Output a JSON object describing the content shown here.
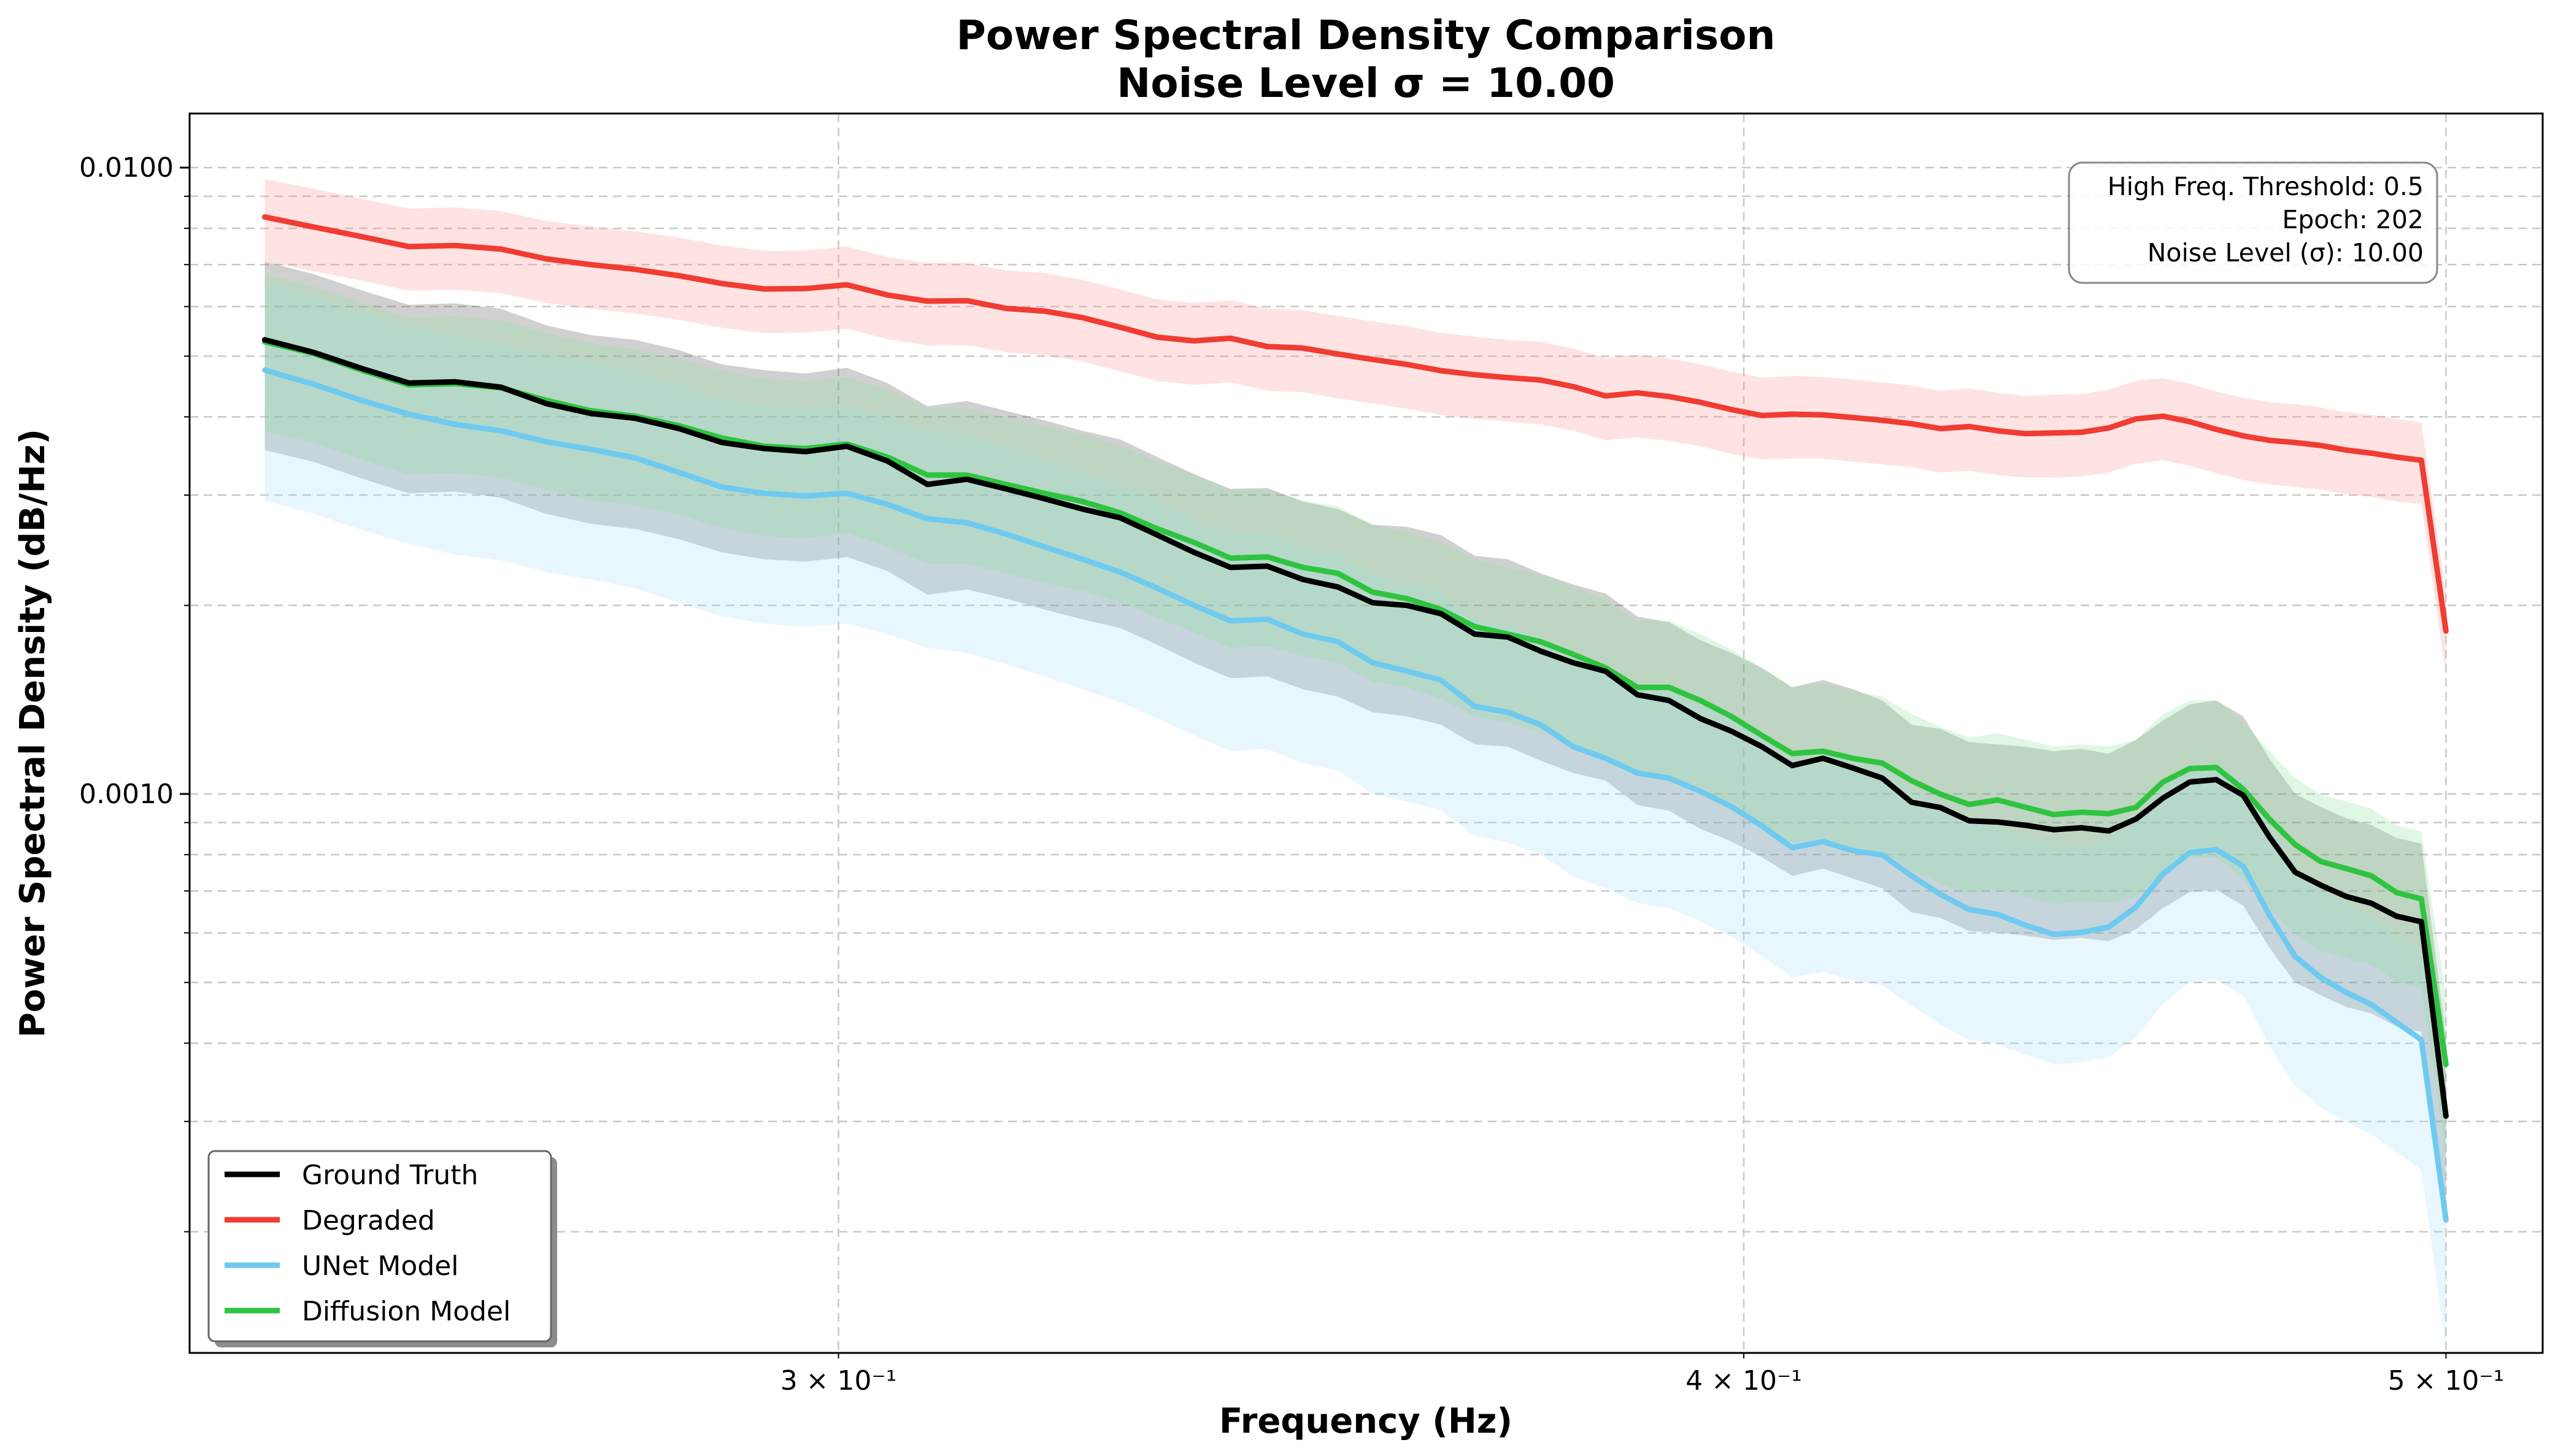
{
  "chart_data": {
    "type": "line",
    "title": "Power Spectral Density Comparison",
    "subtitle": "Noise Level σ = 10.00",
    "xlabel": "Frequency (Hz)",
    "ylabel": "Power Spectral Density (dB/Hz)",
    "x_scale": "log",
    "y_scale": "log",
    "xlim": [
      0.2441,
      0.5156
    ],
    "ylim": [
      0.0001281,
      0.0122
    ],
    "x_ticks": [
      {
        "value": 0.3,
        "label": "3 × 10⁻¹"
      },
      {
        "value": 0.4,
        "label": "4 × 10⁻¹"
      },
      {
        "value": 0.5,
        "label": "5 × 10⁻¹"
      }
    ],
    "y_ticks": [
      {
        "value": 0.001,
        "label": "0.0010"
      },
      {
        "value": 0.01,
        "label": "0.0100"
      }
    ],
    "grid": true,
    "legend_position": "lower-left",
    "annotation": [
      "High Freq. Threshold: 0.5",
      "Epoch: 202",
      "Noise Level (σ): 10.00"
    ],
    "annotation_position": "top-right",
    "x": [
      0.25,
      0.2539,
      0.2578,
      0.2617,
      0.2656,
      0.2695,
      0.2734,
      0.2773,
      0.2812,
      0.2852,
      0.2891,
      0.293,
      0.2969,
      0.3008,
      0.3047,
      0.3086,
      0.3125,
      0.3164,
      0.3203,
      0.3242,
      0.3281,
      0.332,
      0.3359,
      0.3398,
      0.3438,
      0.3477,
      0.3516,
      0.3555,
      0.3594,
      0.3633,
      0.3672,
      0.3711,
      0.375,
      0.3789,
      0.3828,
      0.3867,
      0.3906,
      0.3945,
      0.3984,
      0.4023,
      0.4062,
      0.4102,
      0.4141,
      0.418,
      0.4219,
      0.4258,
      0.4297,
      0.4336,
      0.4375,
      0.4414,
      0.4453,
      0.4492,
      0.4531,
      0.457,
      0.4609,
      0.4648,
      0.4688,
      0.4727,
      0.4766,
      0.4805,
      0.4844,
      0.4883,
      0.4922,
      0.4961,
      0.5
    ],
    "series": [
      {
        "name": "Ground Truth",
        "color": "#000000",
        "band_color": "#555555",
        "values": [
          0.00531,
          0.00507,
          0.00478,
          0.00453,
          0.00455,
          0.00446,
          0.0042,
          0.00405,
          0.00398,
          0.00383,
          0.00364,
          0.00356,
          0.00352,
          0.00359,
          0.0034,
          0.00312,
          0.00318,
          0.00307,
          0.00296,
          0.00285,
          0.00276,
          0.00259,
          0.00243,
          0.0023,
          0.00231,
          0.0022,
          0.00214,
          0.00202,
          0.002,
          0.00194,
          0.0018,
          0.00178,
          0.00169,
          0.00162,
          0.00157,
          0.00144,
          0.00141,
          0.00132,
          0.00126,
          0.00119,
          0.00111,
          0.00114,
          0.0011,
          0.00106,
          0.00097,
          0.000951,
          0.000906,
          0.000902,
          0.000891,
          0.000877,
          0.000883,
          0.000873,
          0.000912,
          0.000985,
          0.001045,
          0.001054,
          0.000995,
          0.000854,
          0.00075,
          0.000715,
          0.000686,
          0.000669,
          0.000638,
          0.000625,
          0.000306
        ],
        "lower": [
          0.00354,
          0.00339,
          0.00319,
          0.00302,
          0.00304,
          0.00297,
          0.0028,
          0.0027,
          0.00265,
          0.00255,
          0.00243,
          0.00237,
          0.00235,
          0.00239,
          0.00227,
          0.00208,
          0.00212,
          0.00205,
          0.00197,
          0.0019,
          0.00184,
          0.00173,
          0.00162,
          0.00153,
          0.00154,
          0.00147,
          0.00143,
          0.00135,
          0.00133,
          0.00129,
          0.0012,
          0.00119,
          0.00113,
          0.00108,
          0.00105,
          0.00096,
          0.00094,
          0.00088,
          0.00084,
          0.000793,
          0.00074,
          0.00076,
          0.000733,
          0.000707,
          0.000647,
          0.000634,
          0.000604,
          0.000601,
          0.000594,
          0.000585,
          0.000589,
          0.000582,
          0.000608,
          0.000657,
          0.000697,
          0.000703,
          0.000663,
          0.000569,
          0.0005,
          0.000477,
          0.000457,
          0.000446,
          0.000425,
          0.000417,
          0.000204
        ],
        "upper": [
          0.00708,
          0.00676,
          0.00637,
          0.00604,
          0.00607,
          0.00595,
          0.0056,
          0.0054,
          0.00531,
          0.00511,
          0.00485,
          0.00475,
          0.00469,
          0.00479,
          0.00453,
          0.00416,
          0.00424,
          0.00409,
          0.00395,
          0.0038,
          0.00368,
          0.00345,
          0.00324,
          0.00307,
          0.00308,
          0.00293,
          0.00285,
          0.00269,
          0.00267,
          0.00259,
          0.0024,
          0.00237,
          0.00225,
          0.00216,
          0.00209,
          0.00192,
          0.00188,
          0.00176,
          0.00168,
          0.00159,
          0.00148,
          0.00152,
          0.00147,
          0.00141,
          0.00129,
          0.00127,
          0.00121,
          0.0012,
          0.00119,
          0.00117,
          0.00118,
          0.00116,
          0.00122,
          0.00131,
          0.00139,
          0.00141,
          0.00133,
          0.00114,
          0.001,
          0.000953,
          0.000915,
          0.000892,
          0.000851,
          0.000833,
          0.000408
        ]
      },
      {
        "name": "Degraded",
        "color": "#f03c32",
        "band_color": "#ff9a9a",
        "values": [
          0.00834,
          0.00804,
          0.00776,
          0.00748,
          0.00751,
          0.00741,
          0.00715,
          0.007,
          0.00688,
          0.00672,
          0.00653,
          0.0064,
          0.00641,
          0.0065,
          0.00626,
          0.00612,
          0.00613,
          0.00596,
          0.0059,
          0.00576,
          0.00556,
          0.00536,
          0.00529,
          0.00534,
          0.00518,
          0.00515,
          0.00504,
          0.00494,
          0.00485,
          0.00474,
          0.00467,
          0.00462,
          0.00458,
          0.00447,
          0.00432,
          0.00437,
          0.00431,
          0.00422,
          0.00411,
          0.00402,
          0.00404,
          0.00403,
          0.00399,
          0.00395,
          0.0039,
          0.00383,
          0.00386,
          0.0038,
          0.00376,
          0.00377,
          0.00378,
          0.00384,
          0.00397,
          0.00401,
          0.00393,
          0.00382,
          0.00373,
          0.00367,
          0.00364,
          0.0036,
          0.00354,
          0.0035,
          0.00345,
          0.00341,
          0.00182
        ],
        "lower": [
          0.00708,
          0.00683,
          0.0066,
          0.00636,
          0.00638,
          0.0063,
          0.00608,
          0.00595,
          0.00585,
          0.00571,
          0.00555,
          0.00544,
          0.00545,
          0.00553,
          0.00532,
          0.0052,
          0.00521,
          0.00507,
          0.00502,
          0.0049,
          0.00473,
          0.00456,
          0.0045,
          0.00454,
          0.0044,
          0.00438,
          0.00428,
          0.0042,
          0.00412,
          0.00403,
          0.00397,
          0.00393,
          0.00389,
          0.0038,
          0.00367,
          0.00371,
          0.00366,
          0.00359,
          0.00349,
          0.00342,
          0.00343,
          0.00343,
          0.00339,
          0.00336,
          0.00332,
          0.00326,
          0.00328,
          0.00323,
          0.0032,
          0.0032,
          0.00321,
          0.00326,
          0.00337,
          0.00341,
          0.00334,
          0.00325,
          0.00317,
          0.00312,
          0.00309,
          0.00306,
          0.00301,
          0.00298,
          0.00293,
          0.0029,
          0.00155
        ],
        "upper": [
          0.0096,
          0.00925,
          0.00892,
          0.0086,
          0.00864,
          0.00852,
          0.00822,
          0.00805,
          0.00791,
          0.00773,
          0.00751,
          0.00736,
          0.00737,
          0.00748,
          0.0072,
          0.00704,
          0.00705,
          0.00685,
          0.00679,
          0.00662,
          0.00639,
          0.00616,
          0.00608,
          0.00614,
          0.00596,
          0.00592,
          0.0058,
          0.00568,
          0.00558,
          0.00545,
          0.00537,
          0.00531,
          0.00527,
          0.00514,
          0.00497,
          0.00503,
          0.00496,
          0.00485,
          0.00473,
          0.00462,
          0.00465,
          0.00463,
          0.00459,
          0.00454,
          0.00449,
          0.0044,
          0.00444,
          0.00437,
          0.00432,
          0.00434,
          0.00435,
          0.00442,
          0.00457,
          0.00461,
          0.00452,
          0.00439,
          0.00429,
          0.00422,
          0.00419,
          0.00414,
          0.00407,
          0.00403,
          0.00397,
          0.00392,
          0.00209
        ]
      },
      {
        "name": "UNet Model",
        "color": "#6fcaf0",
        "band_color": "#a8e2f8",
        "values": [
          0.00475,
          0.00451,
          0.00425,
          0.00404,
          0.00389,
          0.0038,
          0.00365,
          0.00355,
          0.00344,
          0.00326,
          0.00309,
          0.00302,
          0.00299,
          0.00302,
          0.0029,
          0.00275,
          0.00271,
          0.0026,
          0.00248,
          0.00237,
          0.00226,
          0.00213,
          0.002,
          0.00189,
          0.0019,
          0.0018,
          0.00175,
          0.00162,
          0.00157,
          0.00152,
          0.00138,
          0.00135,
          0.00129,
          0.00119,
          0.00114,
          0.00108,
          0.00106,
          0.00101,
          0.000955,
          0.000889,
          0.000821,
          0.000839,
          0.000812,
          0.000799,
          0.00074,
          0.000691,
          0.000654,
          0.000642,
          0.000617,
          0.000597,
          0.000601,
          0.000613,
          0.00066,
          0.000745,
          0.000806,
          0.000815,
          0.000767,
          0.000641,
          0.00055,
          0.000509,
          0.000482,
          0.000461,
          0.000432,
          0.000405,
          0.000209
        ],
        "lower": [
          0.00294,
          0.0028,
          0.00264,
          0.00251,
          0.00241,
          0.00236,
          0.00226,
          0.0022,
          0.00213,
          0.00202,
          0.00192,
          0.00187,
          0.00185,
          0.00187,
          0.0018,
          0.00171,
          0.00168,
          0.00161,
          0.00154,
          0.00147,
          0.0014,
          0.00132,
          0.00124,
          0.00117,
          0.00118,
          0.00112,
          0.00109,
          0.001,
          0.000973,
          0.000942,
          0.000856,
          0.000837,
          0.0008,
          0.000738,
          0.000707,
          0.00067,
          0.000657,
          0.000626,
          0.000592,
          0.000551,
          0.000509,
          0.00052,
          0.000503,
          0.000495,
          0.000459,
          0.000428,
          0.000405,
          0.000398,
          0.000383,
          0.00037,
          0.000373,
          0.00038,
          0.000409,
          0.000462,
          0.0005,
          0.000505,
          0.000476,
          0.000397,
          0.000341,
          0.000316,
          0.000299,
          0.000286,
          0.000268,
          0.000251,
          0.00013
        ],
        "upper": [
          0.00656,
          0.00622,
          0.00587,
          0.00558,
          0.00537,
          0.00524,
          0.00504,
          0.0049,
          0.00475,
          0.0045,
          0.00426,
          0.00417,
          0.00413,
          0.00417,
          0.004,
          0.0038,
          0.00374,
          0.00359,
          0.00342,
          0.00327,
          0.00312,
          0.00294,
          0.00276,
          0.00261,
          0.00262,
          0.00248,
          0.00242,
          0.00224,
          0.00217,
          0.0021,
          0.0019,
          0.00186,
          0.00178,
          0.00164,
          0.00157,
          0.00149,
          0.00146,
          0.00139,
          0.00132,
          0.00123,
          0.00113,
          0.00116,
          0.00112,
          0.0011,
          0.00102,
          0.000954,
          0.000903,
          0.000886,
          0.000851,
          0.000824,
          0.000829,
          0.000846,
          0.000911,
          0.00103,
          0.00111,
          0.00112,
          0.00106,
          0.000885,
          0.000759,
          0.000702,
          0.000665,
          0.000636,
          0.000596,
          0.000559,
          0.000288
        ]
      },
      {
        "name": "Diffusion Model",
        "color": "#2fc440",
        "band_color": "#8fe39a",
        "values": [
          0.00527,
          0.00505,
          0.00475,
          0.0045,
          0.00452,
          0.00445,
          0.00425,
          0.00409,
          0.00401,
          0.00387,
          0.0037,
          0.00359,
          0.00356,
          0.00362,
          0.00345,
          0.00323,
          0.00323,
          0.00312,
          0.00302,
          0.00293,
          0.00281,
          0.00265,
          0.00252,
          0.00238,
          0.00239,
          0.0023,
          0.00225,
          0.0021,
          0.00205,
          0.00197,
          0.00185,
          0.0018,
          0.00175,
          0.00167,
          0.00159,
          0.00148,
          0.00148,
          0.00141,
          0.00133,
          0.00124,
          0.00116,
          0.00117,
          0.00114,
          0.00112,
          0.00105,
          0.000999,
          0.000962,
          0.000978,
          0.000952,
          0.000927,
          0.000935,
          0.00093,
          0.000952,
          0.001045,
          0.001098,
          0.001102,
          0.001018,
          0.000912,
          0.00083,
          0.00078,
          0.00076,
          0.00074,
          0.000696,
          0.00068,
          0.00037
        ],
        "lower": [
          0.00379,
          0.00364,
          0.00342,
          0.00324,
          0.00325,
          0.0032,
          0.00306,
          0.00294,
          0.00289,
          0.00279,
          0.00266,
          0.00258,
          0.00256,
          0.00261,
          0.00248,
          0.00233,
          0.00233,
          0.00225,
          0.00217,
          0.00211,
          0.00202,
          0.00191,
          0.00181,
          0.00171,
          0.00172,
          0.00166,
          0.00162,
          0.00151,
          0.00148,
          0.00142,
          0.00133,
          0.0013,
          0.00126,
          0.0012,
          0.00114,
          0.00107,
          0.00107,
          0.00102,
          0.000958,
          0.000893,
          0.000835,
          0.000842,
          0.000821,
          0.000806,
          0.000756,
          0.000719,
          0.000693,
          0.000704,
          0.000685,
          0.000667,
          0.000673,
          0.00067,
          0.000685,
          0.000752,
          0.000791,
          0.000793,
          0.000733,
          0.000657,
          0.000598,
          0.000562,
          0.000547,
          0.000533,
          0.000501,
          0.00049,
          0.000266
        ],
        "upper": [
          0.00675,
          0.00646,
          0.00608,
          0.00576,
          0.00579,
          0.0057,
          0.00544,
          0.00524,
          0.00513,
          0.00495,
          0.00474,
          0.0046,
          0.00456,
          0.00463,
          0.00442,
          0.00413,
          0.00413,
          0.00399,
          0.00387,
          0.00375,
          0.0036,
          0.00339,
          0.00323,
          0.00305,
          0.00306,
          0.00294,
          0.00288,
          0.00269,
          0.00262,
          0.00252,
          0.00237,
          0.0023,
          0.00224,
          0.00214,
          0.00204,
          0.00189,
          0.00189,
          0.0018,
          0.0017,
          0.00159,
          0.00148,
          0.0015,
          0.00146,
          0.00143,
          0.00134,
          0.00128,
          0.00123,
          0.00125,
          0.00122,
          0.00119,
          0.0012,
          0.00119,
          0.00122,
          0.00134,
          0.00141,
          0.00141,
          0.0013,
          0.00117,
          0.00106,
          0.000998,
          0.000973,
          0.000947,
          0.000891,
          0.00087,
          0.000474
        ]
      }
    ]
  }
}
